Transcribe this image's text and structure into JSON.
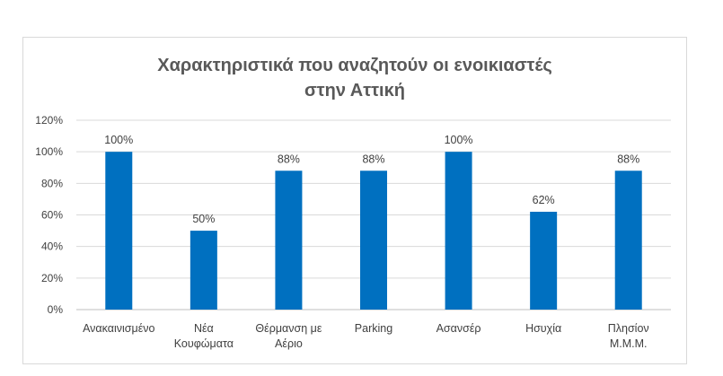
{
  "chart_data": {
    "type": "bar",
    "title_lines": [
      "Χαρακτηριστικά που αναζητούν οι ενοικιαστές",
      "στην Αττική"
    ],
    "categories": [
      [
        "Ανακαινισμένο"
      ],
      [
        "Νέα",
        "Κουφώματα"
      ],
      [
        "Θέρμανση με",
        "Αέριο"
      ],
      [
        "Parking"
      ],
      [
        "Ασανσέρ"
      ],
      [
        "Ησυχία"
      ],
      [
        "Πλησίον",
        "Μ.Μ.Μ."
      ]
    ],
    "values": [
      100,
      50,
      88,
      88,
      100,
      62,
      88
    ],
    "data_labels": [
      "100%",
      "50%",
      "88%",
      "88%",
      "100%",
      "62%",
      "88%"
    ],
    "y_ticks": [
      "0%",
      "20%",
      "40%",
      "60%",
      "80%",
      "100%",
      "120%"
    ],
    "ylim": [
      0,
      120
    ],
    "bar_color": "#0070C0",
    "grid": true,
    "legend": "none"
  }
}
